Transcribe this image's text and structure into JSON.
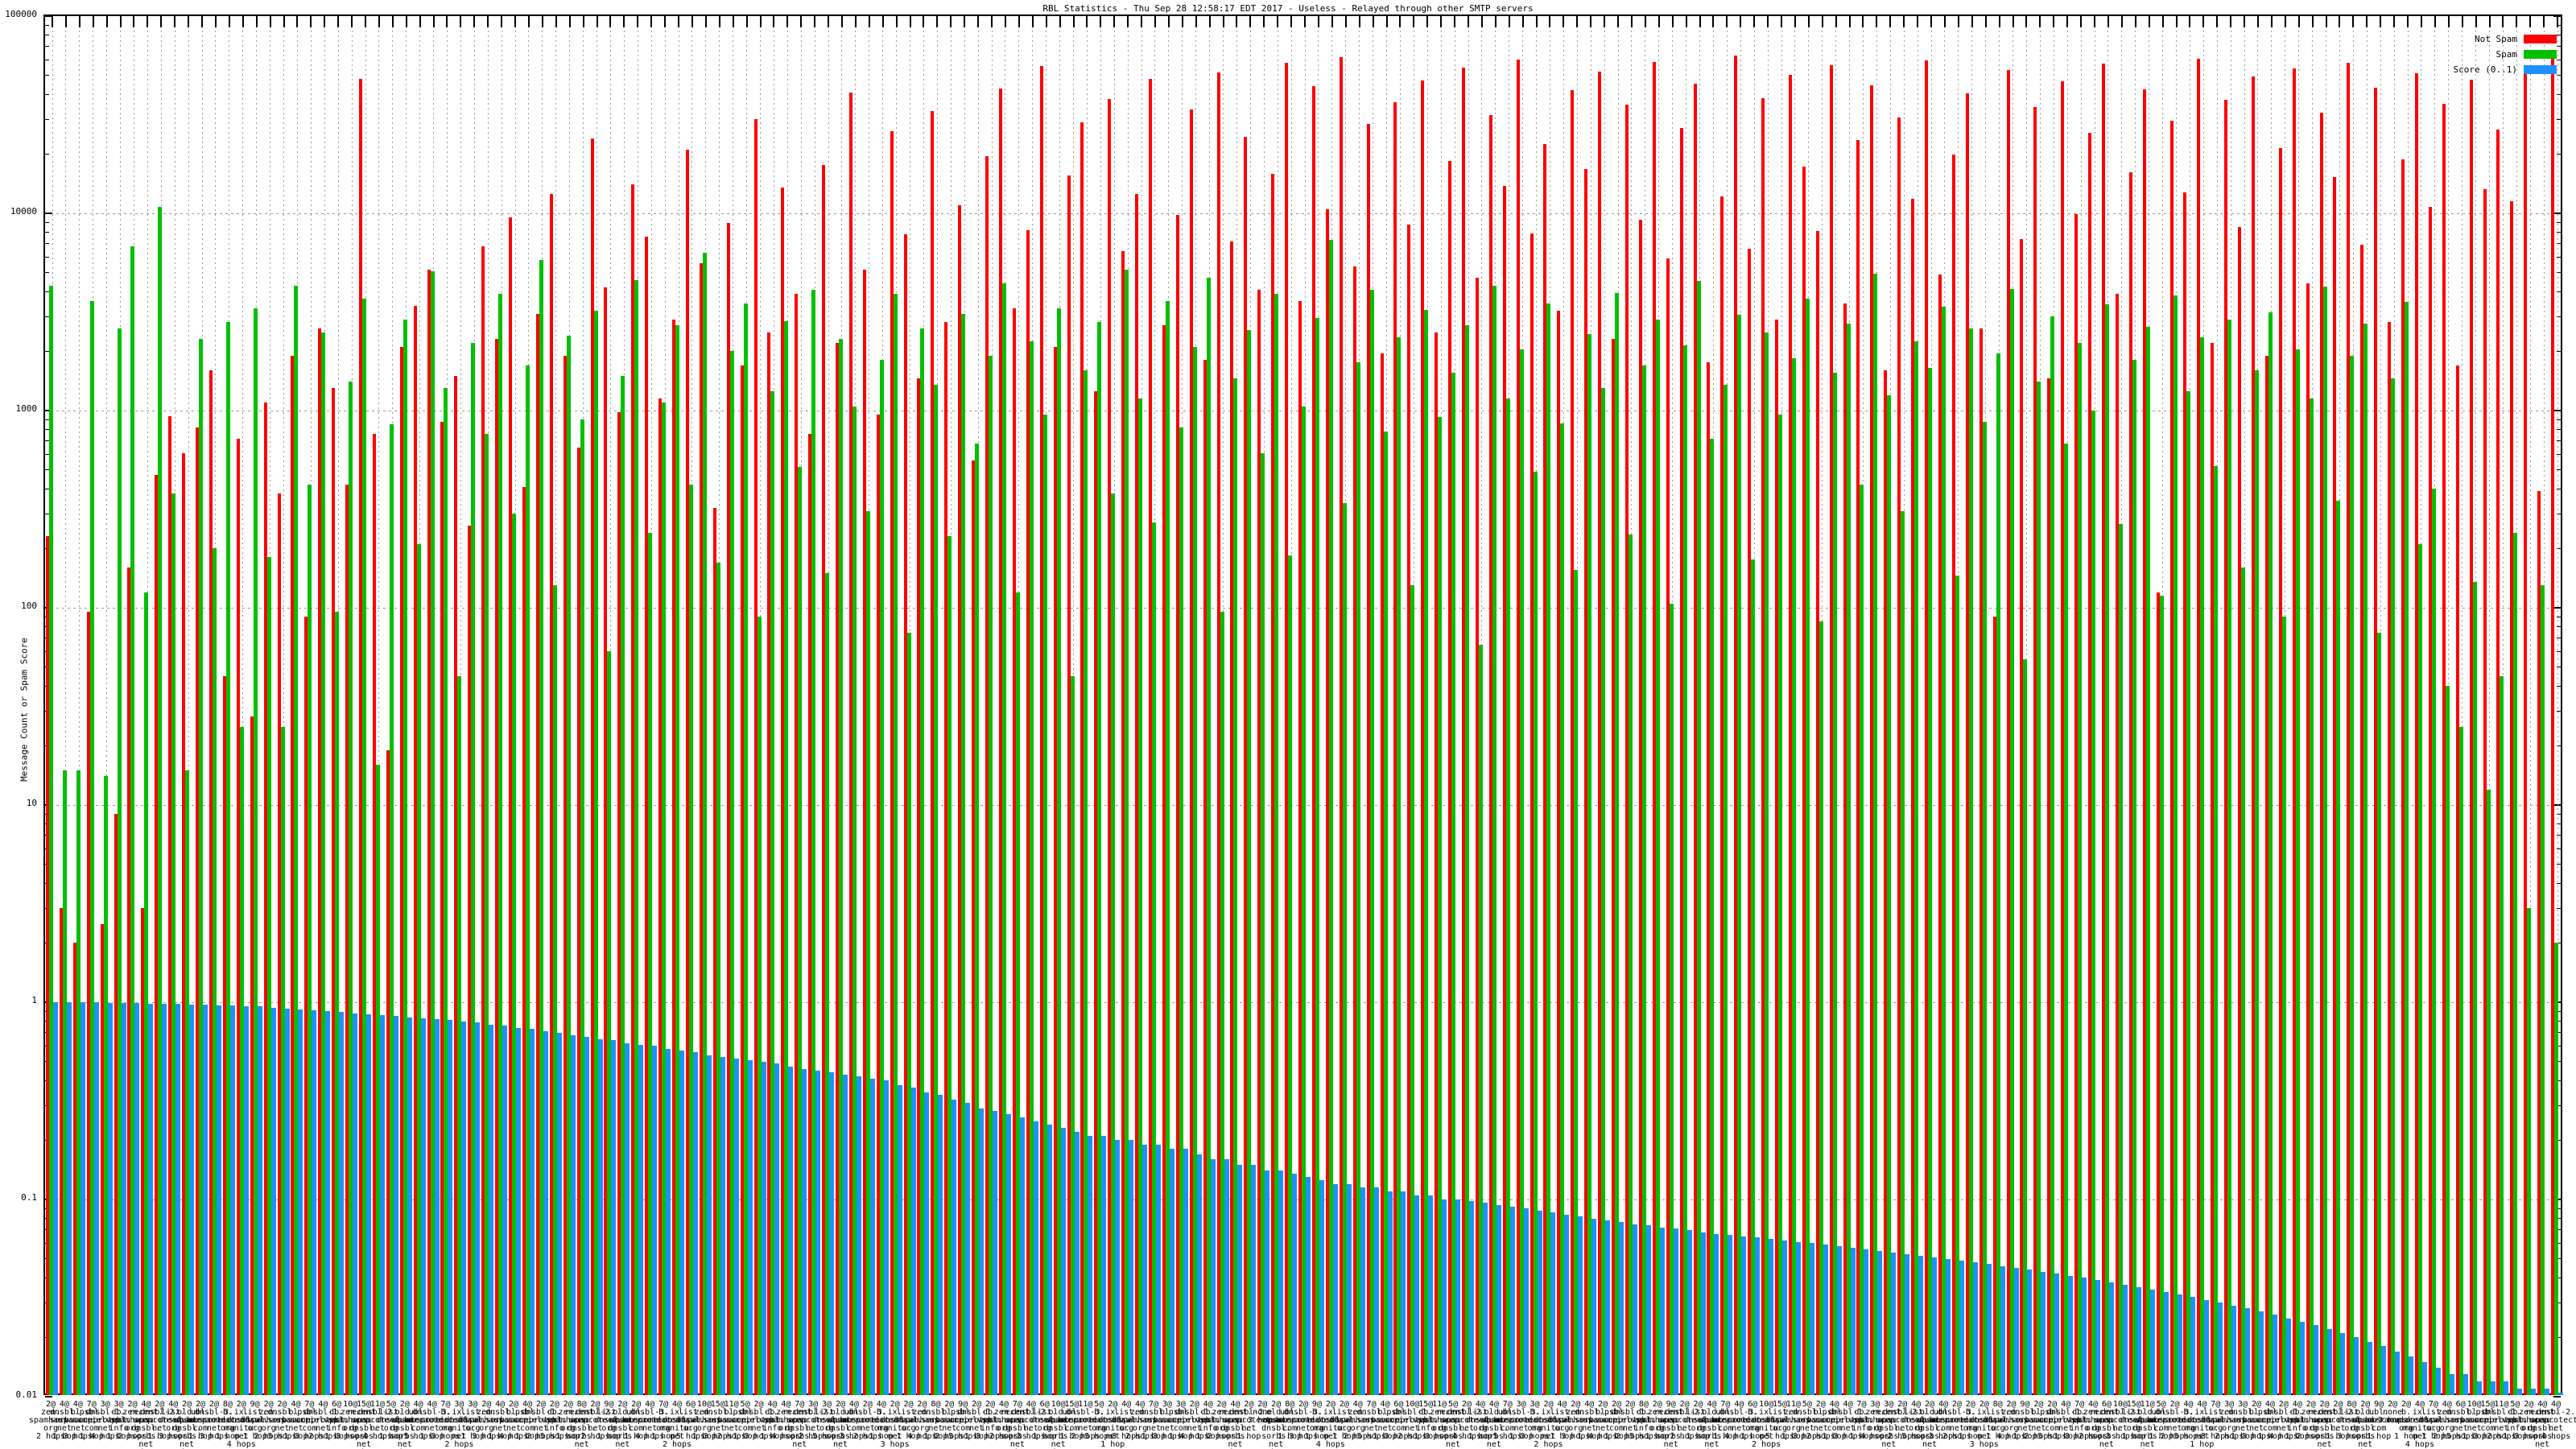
{
  "chart_data": {
    "type": "bar",
    "title": "RBL Statistics - Thu Sep 28 12:58:17 EDT 2017 - Useless - Relayed through other SMTP servers",
    "ylabel": "Message Count or Spam Score",
    "xlabel": "",
    "y_scale": "log",
    "ylim": [
      0.01,
      100000
    ],
    "yticks": [
      100000,
      10000,
      1000,
      100,
      10,
      1,
      0.1,
      0.01
    ],
    "ytick_labels": [
      "100000",
      "10000",
      "1000",
      "100",
      "10",
      "1",
      "0.1",
      "0.01"
    ],
    "grid": "dashed gray, horizontal per decade and vertical per category",
    "legend_position": "top-right",
    "legend": [
      {
        "label": "Not Spam",
        "color": "#ff0000"
      },
      {
        "label": "Spam",
        "color": "#00c000"
      },
      {
        "label": "Score (0..1)",
        "color": "#1e90ff"
      }
    ],
    "categories": [
      "2@zen.spamhaus.org|2 hops",
      "4@dnsbl.sorbs.net|1 hop",
      "4@bl.spamcop.net|3 hops",
      "7@psbl.surriel.com|1 hop",
      "3@dnsbl-1.uceprotect.net|4 hops",
      "3@db.wpbl.info|1 hop",
      "2@zen.spamhaus.org|2 hops",
      "4@recent.spam.dnsbl.sorbs.net|5 hops",
      "2@dnsbl-2.uceprotect.net|1 hop",
      "4@list.dnswl.org|3 hops",
      "2@old.spam.dnsbl.sorbs.net|2 hops",
      "2@ubl.unsubscore.com|1 hop",
      "2@dnsbl-3.uceprotect.net|3 hops",
      "8@b.barracudacentral.org|1 hop",
      "2@ix.dnsbl.manitu.net|4 hops",
      "9@list.dnswl.org|1 hop",
      "2@zen.spamhaus.org|2 hops",
      "2@dnsbl.sorbs.net|5 hops",
      "4@bl.spamcop.net|1 hop",
      "7@psbl.surriel.com|3 hops",
      "4@dnsbl-1.uceprotect.net|2 hops",
      "6@db.wpbl.info|1 hop",
      "10@zen.spamhaus.org|3 hops",
      "15@recent.spam.dnsbl.sorbs.net|1 hop",
      "11@dnsbl-2.uceprotect.net|4 hops",
      "5@list.dnswl.org|1 hop",
      "2@old.spam.dnsbl.sorbs.net|2 hops",
      "4@ubl.unsubscore.com|5 hops",
      "4@dnsbl-3.uceprotect.net|1 hop",
      "7@b.barracudacentral.org|3 hops",
      "3@ix.dnsbl.manitu.net|2 hops",
      "3@list.dnswl.org|1 hop",
      "2@zen.spamhaus.org|3 hops",
      "4@dnsbl.sorbs.net|1 hop",
      "2@bl.spamcop.net|4 hops",
      "4@psbl.surriel.com|1 hop",
      "2@dnsbl-1.uceprotect.net|2 hops",
      "2@db.wpbl.info|5 hops",
      "2@zen.spamhaus.org|1 hop",
      "8@recent.spam.dnsbl.sorbs.net|3 hops",
      "2@dnsbl-2.uceprotect.net|2 hops",
      "9@list.dnswl.org|1 hop",
      "2@old.spam.dnsbl.sorbs.net|3 hops",
      "2@ubl.unsubscore.com|1 hop",
      "4@dnsbl-3.uceprotect.net|4 hops",
      "7@b.barracudacentral.org|1 hop",
      "4@ix.dnsbl.manitu.net|2 hops",
      "6@list.dnswl.org|5 hops",
      "10@zen.spamhaus.org|1 hop",
      "15@dnsbl.sorbs.net|3 hops",
      "11@bl.spamcop.net|2 hops",
      "5@psbl.surriel.com|1 hop",
      "2@dnsbl-1.uceprotect.net|3 hops",
      "4@db.wpbl.info|1 hop",
      "4@zen.spamhaus.org|4 hops",
      "7@recent.spam.dnsbl.sorbs.net|1 hop",
      "3@dnsbl-2.uceprotect.net|2 hops",
      "3@list.dnswl.org|5 hops",
      "2@old.spam.dnsbl.sorbs.net|1 hop",
      "4@ubl.unsubscore.com|3 hops",
      "2@dnsbl-3.uceprotect.net|2 hops",
      "4@b.barracudacentral.org|1 hop",
      "2@ix.dnsbl.manitu.net|3 hops",
      "2@list.dnswl.org|1 hop",
      "2@zen.spamhaus.org|4 hops",
      "8@dnsbl.sorbs.net|1 hop",
      "2@bl.spamcop.net|2 hops",
      "9@psbl.surriel.com|5 hops",
      "2@dnsbl-1.uceprotect.net|1 hop",
      "2@db.wpbl.info|3 hops",
      "4@zen.spamhaus.org|2 hops",
      "7@recent.spam.dnsbl.sorbs.net|1 hop",
      "4@dnsbl-2.uceprotect.net|3 hops",
      "6@list.dnswl.org|1 hop",
      "10@old.spam.dnsbl.sorbs.net|4 hops",
      "15@ubl.unsubscore.com|1 hop",
      "11@dnsbl-3.uceprotect.net|2 hops",
      "5@b.barracudacentral.org|5 hops",
      "2@ix.dnsbl.manitu.net|1 hop",
      "4@list.dnswl.org|3 hops",
      "4@zen.spamhaus.org|2 hops",
      "7@dnsbl.sorbs.net|1 hop",
      "3@bl.spamcop.net|3 hops",
      "3@psbl.surriel.com|1 hop",
      "2@dnsbl-1.uceprotect.net|4 hops",
      "4@db.wpbl.info|1 hop",
      "2@zen.spamhaus.org|2 hops",
      "4@recent.spam.dnsbl.sorbs.net|5 hops",
      "2@dnsbl-2.uceprotect.net|1 hop",
      "2@none|3 hops",
      "2@old.spam.dnsbl.sorbs.net|2 hops",
      "8@ubl.unsubscore.com|1 hop",
      "2@dnsbl-3.uceprotect.net|3 hops",
      "9@b.barracudacentral.org|1 hop",
      "2@ix.dnsbl.manitu.net|4 hops",
      "2@list.dnswl.org|1 hop",
      "4@zen.spamhaus.org|2 hops",
      "7@dnsbl.sorbs.net|5 hops",
      "4@bl.spamcop.net|1 hop",
      "6@psbl.surriel.com|3 hops",
      "10@dnsbl-1.uceprotect.net|2 hops",
      "15@db.wpbl.info|1 hop",
      "11@zen.spamhaus.org|3 hops",
      "5@recent.spam.dnsbl.sorbs.net|1 hop",
      "2@dnsbl-2.uceprotect.net|4 hops",
      "4@list.dnswl.org|1 hop",
      "4@old.spam.dnsbl.sorbs.net|2 hops",
      "7@ubl.unsubscore.com|5 hops",
      "3@dnsbl-3.uceprotect.net|1 hop",
      "3@b.barracudacentral.org|3 hops",
      "2@ix.dnsbl.manitu.net|2 hops",
      "4@list.dnswl.org|1 hop",
      "2@zen.spamhaus.org|3 hops",
      "4@dnsbl.sorbs.net|1 hop",
      "2@bl.spamcop.net|4 hops",
      "2@psbl.surriel.com|1 hop",
      "2@dnsbl-1.uceprotect.net|2 hops",
      "8@db.wpbl.info|5 hops",
      "2@zen.spamhaus.org|1 hop",
      "9@recent.spam.dnsbl.sorbs.net|3 hops",
      "2@dnsbl-2.uceprotect.net|2 hops",
      "2@list.dnswl.org|1 hop",
      "4@old.spam.dnsbl.sorbs.net|3 hops",
      "7@ubl.unsubscore.com|1 hop",
      "4@dnsbl-3.uceprotect.net|4 hops",
      "6@b.barracudacentral.org|1 hop",
      "10@ix.dnsbl.manitu.net|2 hops",
      "15@list.dnswl.org|5 hops",
      "11@zen.spamhaus.org|1 hop",
      "5@dnsbl.sorbs.net|3 hops",
      "2@bl.spamcop.net|2 hops",
      "4@psbl.surriel.com|1 hop",
      "4@dnsbl-1.uceprotect.net|3 hops",
      "7@db.wpbl.info|1 hop",
      "3@zen.spamhaus.org|4 hops",
      "3@recent.spam.dnsbl.sorbs.net|1 hop",
      "2@dnsbl-2.uceprotect.net|2 hops",
      "4@list.dnswl.org|5 hops",
      "2@old.spam.dnsbl.sorbs.net|1 hop",
      "4@ubl.unsubscore.com|3 hops",
      "2@dnsbl-3.uceprotect.net|2 hops",
      "2@b.barracudacentral.org|1 hop",
      "2@ix.dnsbl.manitu.net|3 hops",
      "8@list.dnswl.org|1 hop",
      "2@zen.spamhaus.org|4 hops",
      "9@dnsbl.sorbs.net|1 hop",
      "2@bl.spamcop.net|2 hops",
      "2@psbl.surriel.com|5 hops",
      "4@dnsbl-1.uceprotect.net|1 hop",
      "7@db.wpbl.info|3 hops",
      "4@zen.spamhaus.org|2 hops",
      "6@recent.spam.dnsbl.sorbs.net|1 hop",
      "10@dnsbl-2.uceprotect.net|3 hops",
      "15@list.dnswl.org|1 hop",
      "11@old.spam.dnsbl.sorbs.net|4 hops",
      "5@ubl.unsubscore.com|1 hop",
      "2@dnsbl-3.uceprotect.net|2 hops",
      "4@b.barracudacentral.org|5 hops",
      "4@ix.dnsbl.manitu.net|1 hop",
      "7@list.dnswl.org|3 hops",
      "3@zen.spamhaus.org|2 hops",
      "3@dnsbl.sorbs.net|1 hop",
      "2@bl.spamcop.net|3 hops",
      "4@psbl.surriel.com|1 hop",
      "2@dnsbl-1.uceprotect.net|4 hops",
      "4@db.wpbl.info|1 hop",
      "2@zen.spamhaus.org|2 hops",
      "2@recent.spam.dnsbl.sorbs.net|5 hops",
      "2@dnsbl-2.uceprotect.net|1 hop",
      "8@list.dnswl.org|3 hops",
      "2@old.spam.dnsbl.sorbs.net|2 hops",
      "9@ubl.unsubscore.com|1 hop",
      "2@none|3 hops",
      "2@b.barracudacentral.org|1 hop",
      "4@ix.dnsbl.manitu.net|4 hops",
      "7@list.dnswl.org|1 hop",
      "4@zen.spamhaus.org|2 hops",
      "6@dnsbl.sorbs.net|5 hops",
      "10@bl.spamcop.net|1 hop",
      "15@psbl.surriel.com|3 hops",
      "11@dnsbl-1.uceprotect.net|2 hops",
      "5@db.wpbl.info|1 hop",
      "2@zen.spamhaus.org|3 hops",
      "4@recent.spam.dnsbl.sorbs.net|1 hop",
      "4@dnsbl-2.uceprotect.net|4 hops"
    ],
    "series": [
      {
        "name": "Not Spam",
        "color": "#ff0000",
        "values": [
          230,
          3,
          2,
          95,
          2.5,
          9,
          160,
          3,
          470,
          940,
          610,
          820,
          1600,
          45,
          720,
          28,
          1100,
          380,
          1900,
          90,
          2600,
          1300,
          420,
          48000,
          760,
          19,
          2100,
          3400,
          5200,
          880,
          1500,
          260,
          6800,
          2300,
          9500,
          410,
          3100,
          12500,
          1900,
          650,
          24000,
          4200,
          980,
          14000,
          7600,
          1150,
          2900,
          21000,
          5600,
          320,
          8900,
          1700,
          30000,
          2500,
          13500,
          3900,
          760,
          17500,
          2200,
          41000,
          5200,
          950,
          26000,
          7800,
          1450,
          33000,
          2800,
          11000,
          560,
          19500,
          43000,
          3300,
          8200,
          56000,
          2100,
          15500,
          29000,
          1250,
          38000,
          6400,
          12500,
          48000,
          2700,
          9800,
          33500,
          1800,
          52000,
          7200,
          24500,
          4100,
          15800,
          58000,
          3600,
          44000,
          10500,
          62000,
          5400,
          28500,
          1950,
          36500,
          8800,
          47000,
          2500,
          18500,
          55000,
          4700,
          31500,
          13800,
          60000,
          7900,
          22500,
          3200,
          42000,
          16800,
          52500,
          2300,
          35500,
          9300,
          58500,
          5900,
          27000,
          45500,
          1750,
          12200,
          63000,
          6600,
          38500,
          2900,
          50500,
          17200,
          8100,
          56500,
          3500,
          23500,
          44500,
          1600,
          30500,
          11800,
          59500,
          4900,
          19800,
          40500,
          2600,
          90,
          53500,
          7400,
          34500,
          1450,
          46500,
          9900,
          25500,
          57500,
          3900,
          16200,
          42500,
          120,
          29500,
          12800,
          61000,
          2200,
          37500,
          8500,
          49500,
          1900,
          21500,
          54500,
          4400,
          32500,
          15200,
          58000,
          6900,
          43500,
          2800,
          18800,
          51500,
          10800,
          36000,
          1700,
          47500,
          13200,
          26500,
          11500,
          56000,
          390,
          64000
        ]
      },
      {
        "name": "Spam",
        "color": "#00c000",
        "values": [
          4300,
          15,
          15,
          3600,
          14,
          2600,
          6800,
          120,
          10800,
          380,
          15,
          2300,
          200,
          2800,
          25,
          3300,
          180,
          25,
          4300,
          420,
          2500,
          95,
          1400,
          3700,
          16,
          850,
          2900,
          210,
          5100,
          1300,
          45,
          2200,
          760,
          3900,
          300,
          1700,
          5800,
          130,
          2400,
          900,
          3200,
          60,
          1500,
          4600,
          240,
          1100,
          2700,
          420,
          6300,
          170,
          2000,
          3500,
          90,
          1250,
          2850,
          520,
          4100,
          150,
          2300,
          1050,
          310,
          1800,
          3900,
          75,
          2600,
          1350,
          230,
          3100,
          680,
          1900,
          4400,
          120,
          2250,
          950,
          3300,
          45,
          1600,
          2800,
          380,
          5200,
          1150,
          270,
          3600,
          820,
          2100,
          4700,
          95,
          1450,
          2550,
          610,
          3900,
          185,
          1050,
          2950,
          7300,
          340,
          1750,
          4100,
          780,
          2350,
          130,
          3250,
          925,
          1550,
          2700,
          65,
          4300,
          1150,
          2050,
          490,
          3500,
          860,
          155,
          2450,
          1300,
          3950,
          235,
          1700,
          2900,
          105,
          2150,
          4550,
          720,
          1350,
          3050,
          175,
          2500,
          950,
          1850,
          3700,
          85,
          1550,
          2750,
          420,
          4950,
          1200,
          310,
          2250,
          1650,
          3350,
          145,
          2600,
          875,
          1950,
          4150,
          55,
          1400,
          3000,
          680,
          2200,
          1000,
          3450,
          265,
          1800,
          2650,
          115,
          3850,
          1250,
          2350,
          525,
          2900,
          160,
          1600,
          3150,
          90,
          2050,
          1150,
          4250,
          350,
          1900,
          2750,
          75,
          1450,
          3550,
          210,
          400,
          40,
          25,
          135,
          12,
          45,
          240,
          3,
          130,
          2
        ]
      },
      {
        "name": "Score (0..1)",
        "color": "#1e90ff",
        "values": [
          1.0,
          1.0,
          1.0,
          1.0,
          0.99,
          0.99,
          0.99,
          0.98,
          0.98,
          0.98,
          0.97,
          0.97,
          0.96,
          0.96,
          0.95,
          0.95,
          0.94,
          0.93,
          0.92,
          0.91,
          0.9,
          0.89,
          0.88,
          0.87,
          0.86,
          0.85,
          0.84,
          0.83,
          0.82,
          0.81,
          0.8,
          0.79,
          0.77,
          0.76,
          0.74,
          0.73,
          0.71,
          0.7,
          0.68,
          0.67,
          0.65,
          0.64,
          0.62,
          0.61,
          0.6,
          0.58,
          0.57,
          0.56,
          0.54,
          0.53,
          0.52,
          0.51,
          0.5,
          0.49,
          0.47,
          0.46,
          0.45,
          0.44,
          0.43,
          0.42,
          0.41,
          0.4,
          0.38,
          0.37,
          0.35,
          0.34,
          0.32,
          0.31,
          0.29,
          0.28,
          0.27,
          0.26,
          0.25,
          0.24,
          0.23,
          0.22,
          0.21,
          0.21,
          0.2,
          0.2,
          0.19,
          0.19,
          0.18,
          0.18,
          0.17,
          0.16,
          0.16,
          0.15,
          0.15,
          0.14,
          0.14,
          0.135,
          0.13,
          0.125,
          0.12,
          0.12,
          0.115,
          0.115,
          0.11,
          0.11,
          0.105,
          0.105,
          0.1,
          0.1,
          0.098,
          0.096,
          0.094,
          0.092,
          0.09,
          0.088,
          0.086,
          0.084,
          0.082,
          0.08,
          0.078,
          0.077,
          0.075,
          0.074,
          0.072,
          0.071,
          0.07,
          0.068,
          0.067,
          0.066,
          0.065,
          0.064,
          0.063,
          0.062,
          0.061,
          0.06,
          0.059,
          0.058,
          0.057,
          0.056,
          0.055,
          0.054,
          0.053,
          0.052,
          0.051,
          0.05,
          0.049,
          0.048,
          0.047,
          0.046,
          0.045,
          0.044,
          0.043,
          0.042,
          0.041,
          0.04,
          0.039,
          0.038,
          0.037,
          0.036,
          0.035,
          0.034,
          0.033,
          0.032,
          0.031,
          0.03,
          0.029,
          0.028,
          0.027,
          0.026,
          0.025,
          0.024,
          0.023,
          0.022,
          0.021,
          0.02,
          0.019,
          0.018,
          0.017,
          0.016,
          0.015,
          0.014,
          0.013,
          0.013,
          0.012,
          0.012,
          0.012,
          0.011,
          0.011,
          0.011,
          0.0105
        ]
      }
    ]
  }
}
